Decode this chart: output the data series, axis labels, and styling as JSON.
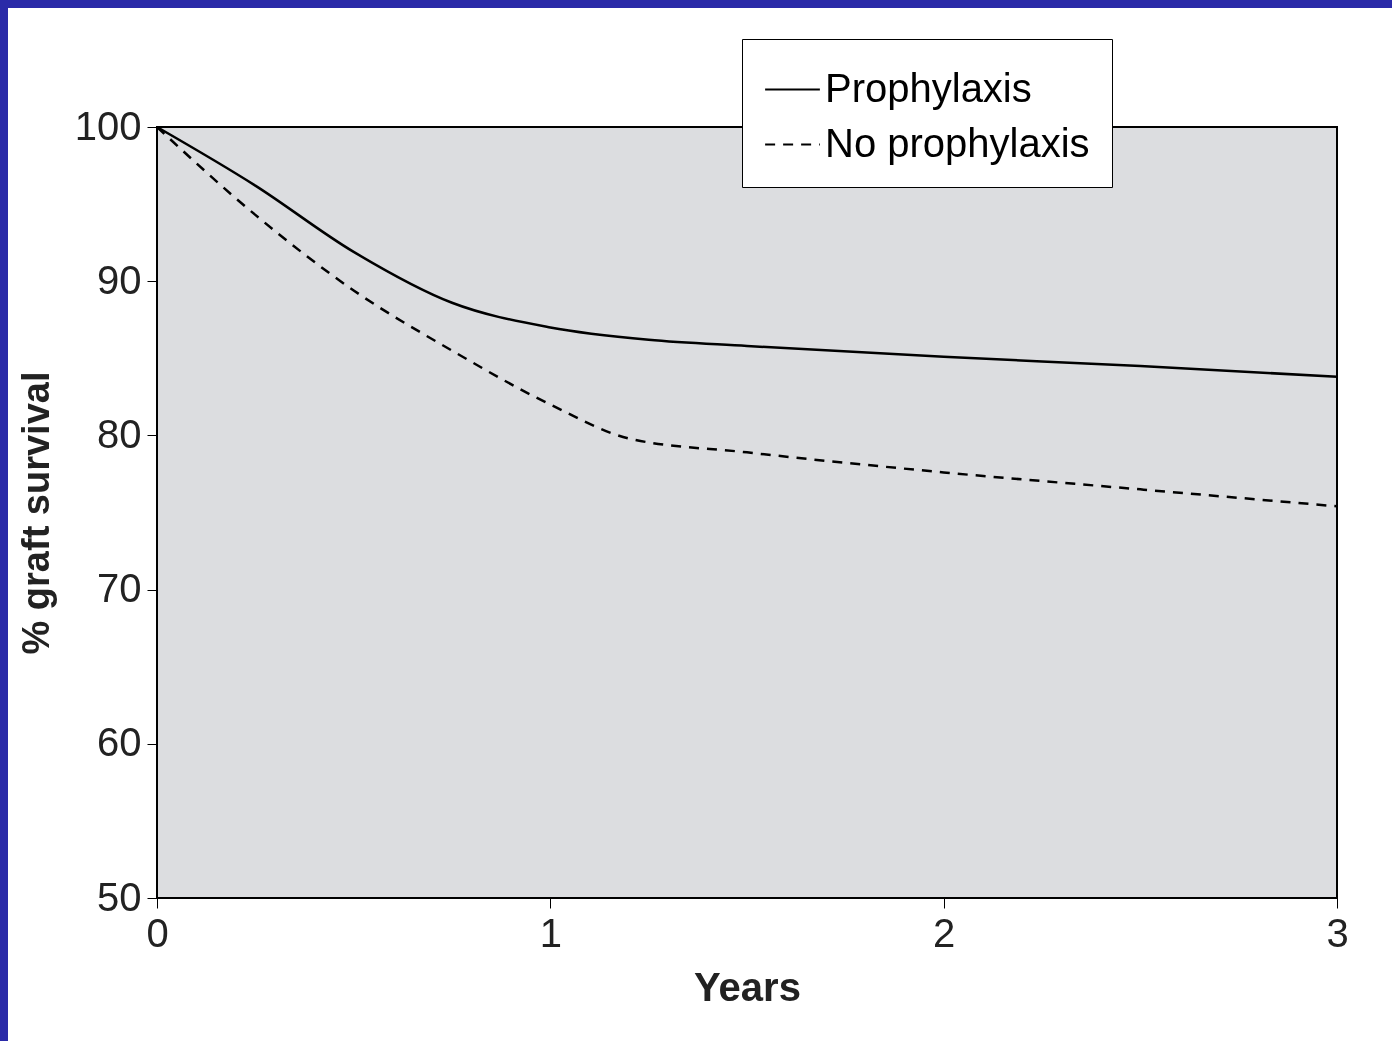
{
  "chart_data": {
    "type": "line",
    "xlabel": "Years",
    "ylabel": "% graft survival",
    "xlim": [
      0,
      3
    ],
    "xticks": [
      0,
      1,
      2,
      3
    ],
    "ylim": [
      50,
      100
    ],
    "yticks": [
      50,
      60,
      70,
      80,
      90,
      100
    ],
    "grid": false,
    "legend": "top right",
    "marker": "none",
    "series": [
      {
        "name": "Prophylaxis",
        "color": "#000000",
        "line_style": "solid",
        "x": [
          0,
          0.25,
          0.5,
          0.75,
          1,
          1.25,
          1.5,
          2,
          2.5,
          3
        ],
        "values": [
          100,
          96.2,
          91.9,
          88.6,
          87.0,
          86.2,
          85.8,
          85.1,
          84.5,
          83.8
        ]
      },
      {
        "name": "No prophylaxis",
        "color": "#000000",
        "line_style": "dashed",
        "x": [
          0,
          0.25,
          0.5,
          0.75,
          1,
          1.2,
          1.5,
          2,
          2.5,
          3
        ],
        "values": [
          100,
          94.3,
          89.4,
          85.5,
          82.0,
          79.8,
          78.9,
          77.6,
          76.5,
          75.4
        ]
      }
    ]
  }
}
